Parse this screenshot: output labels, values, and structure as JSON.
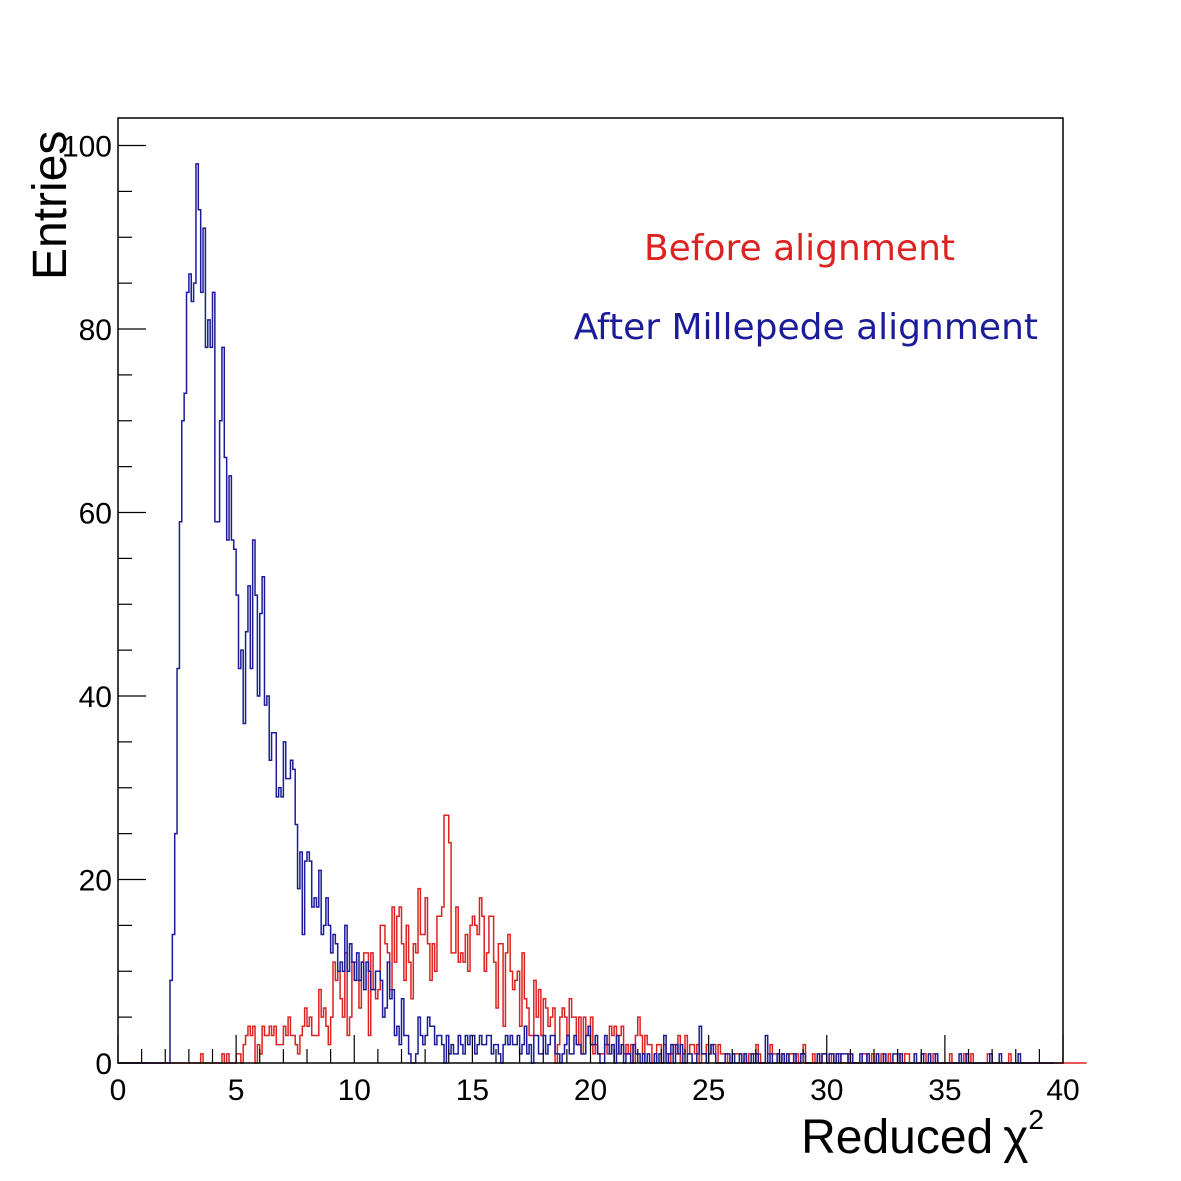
{
  "chart_data": {
    "type": "histogram",
    "xlabel": "Reduced",
    "xlabel_symbol": "χ",
    "xlabel_superscript": "2",
    "ylabel": "Entries",
    "xlim": [
      0,
      40
    ],
    "ylim": [
      0,
      103
    ],
    "bin_width": 0.1,
    "x_tick_labels": [
      "0",
      "5",
      "10",
      "15",
      "20",
      "25",
      "30",
      "35",
      "40"
    ],
    "y_tick_labels": [
      "0",
      "20",
      "40",
      "60",
      "80",
      "100"
    ],
    "grid": false,
    "legend_position": "top-right",
    "series": [
      {
        "name": "Before alignment",
        "color": "#dd2222",
        "bin_start": 0,
        "values": [
          0,
          0,
          0,
          0,
          0,
          0,
          0,
          0,
          0,
          0,
          0,
          0,
          0,
          0,
          0,
          0,
          0,
          0,
          0,
          0,
          0,
          0,
          0,
          0,
          0,
          0,
          0,
          0,
          0,
          0,
          0,
          0,
          0,
          0,
          0,
          1,
          0,
          0,
          0,
          0,
          0,
          0,
          0,
          0,
          1,
          0,
          1,
          0,
          0,
          0,
          1,
          1,
          0,
          2,
          3,
          4,
          3,
          4,
          0,
          2,
          1,
          4,
          3,
          3,
          4,
          3,
          4,
          2,
          2,
          2,
          4,
          3,
          5,
          3,
          3,
          2,
          1,
          3,
          4,
          6,
          4,
          5,
          3,
          3,
          3,
          8,
          5,
          6,
          4,
          2,
          5,
          11,
          9,
          10,
          7,
          5,
          12,
          3,
          5,
          11,
          11,
          9,
          6,
          11,
          12,
          12,
          3,
          12,
          8,
          7,
          8,
          15,
          15,
          13,
          12,
          8,
          17,
          11,
          16,
          17,
          13,
          9,
          15,
          11,
          7,
          13,
          12,
          19,
          14,
          14,
          18,
          13,
          9,
          13,
          10,
          16,
          16,
          17,
          27,
          27,
          24,
          12,
          12,
          17,
          11,
          12,
          11,
          14,
          10,
          15,
          16,
          15,
          14,
          18,
          16,
          10,
          12,
          16,
          16,
          11,
          6,
          13,
          13,
          4,
          12,
          14,
          10,
          8,
          9,
          10,
          4,
          12,
          7,
          6,
          3,
          3,
          9,
          5,
          8,
          3,
          7,
          6,
          4,
          5,
          6,
          0,
          2,
          5,
          6,
          5,
          3,
          7,
          5,
          5,
          2,
          5,
          1,
          5,
          3,
          3,
          5,
          1,
          2,
          1,
          1,
          1,
          2,
          1,
          4,
          3,
          4,
          1,
          3,
          4,
          1,
          2,
          1,
          2,
          0,
          3,
          5,
          3,
          1,
          3,
          2,
          2,
          0,
          0,
          2,
          2,
          0,
          2,
          1,
          0,
          1,
          2,
          1,
          3,
          0,
          1,
          3,
          1,
          2,
          2,
          1,
          2,
          0,
          1,
          1,
          2,
          1,
          2,
          2,
          0,
          2,
          1,
          1,
          1,
          0,
          0,
          1,
          1,
          1,
          1,
          0,
          1,
          0,
          1,
          1,
          1,
          2,
          1,
          0,
          0,
          0,
          1,
          2,
          1,
          1,
          1,
          0,
          1,
          0,
          0,
          1,
          1,
          0,
          1,
          0,
          1,
          2,
          0,
          0,
          0,
          1,
          0,
          1,
          0,
          1,
          1,
          0,
          0,
          1,
          0,
          1,
          1,
          0,
          0,
          0,
          1,
          0,
          0,
          0,
          0,
          0,
          1,
          1,
          0,
          0,
          1,
          0,
          1,
          0,
          1,
          0,
          0,
          1,
          0,
          0,
          0,
          1,
          0,
          0,
          1,
          1,
          0,
          0,
          0,
          0,
          0,
          1,
          1,
          0,
          0,
          0,
          1,
          0,
          0,
          0,
          0,
          0,
          0,
          1,
          0,
          0,
          0,
          0,
          0,
          1,
          0,
          0,
          1,
          0,
          0,
          0,
          0,
          0,
          0,
          1,
          0,
          0,
          0,
          0,
          0,
          0,
          0,
          0,
          1,
          0,
          0,
          0,
          0,
          0,
          0,
          0,
          0,
          0,
          0,
          0,
          0,
          0,
          0,
          0,
          0,
          0,
          0,
          0,
          0,
          0,
          0,
          0,
          0,
          0,
          0,
          0,
          0,
          0,
          0,
          0,
          0
        ]
      },
      {
        "name": "After Millepede alignment",
        "color": "#1c1c99",
        "bin_start": 0,
        "values": [
          0,
          0,
          0,
          0,
          0,
          0,
          0,
          0,
          0,
          0,
          0,
          0,
          0,
          0,
          0,
          0,
          0,
          0,
          0,
          0,
          0,
          0,
          9,
          14,
          25,
          43,
          59,
          70,
          73,
          84,
          86,
          83,
          85,
          98,
          93,
          84,
          91,
          78,
          81,
          78,
          84,
          59,
          59,
          70,
          78,
          66,
          57,
          64,
          57,
          56,
          51,
          43,
          45,
          37,
          47,
          52,
          43,
          57,
          51,
          40,
          49,
          53,
          39,
          40,
          33,
          36,
          36,
          29,
          30,
          29,
          35,
          31,
          31,
          33,
          32,
          26,
          19,
          23,
          14,
          22,
          23,
          22,
          17,
          18,
          17,
          21,
          14,
          15,
          18,
          15,
          12,
          14,
          13,
          10,
          11,
          10,
          15,
          10,
          13,
          11,
          9,
          12,
          9,
          11,
          8,
          11,
          10,
          8,
          8,
          10,
          10,
          9,
          5,
          6,
          11,
          7,
          8,
          3,
          4,
          2,
          7,
          3,
          3,
          1,
          0,
          0,
          1,
          5,
          3,
          2,
          3,
          5,
          4,
          4,
          2,
          3,
          3,
          2,
          0,
          3,
          1,
          2,
          1,
          1,
          3,
          2,
          1,
          3,
          2,
          3,
          3,
          1,
          2,
          3,
          2,
          2,
          3,
          3,
          1,
          2,
          2,
          1,
          0,
          2,
          3,
          2,
          3,
          2,
          2,
          3,
          1,
          2,
          4,
          1,
          2,
          0,
          3,
          3,
          1,
          1,
          3,
          1,
          2,
          3,
          3,
          1,
          1,
          0,
          1,
          2,
          3,
          1,
          1,
          3,
          2,
          2,
          1,
          1,
          3,
          4,
          2,
          2,
          3,
          1,
          0,
          0,
          3,
          2,
          1,
          2,
          0,
          3,
          1,
          2,
          0,
          1,
          1,
          0,
          2,
          1,
          1,
          0,
          1,
          0,
          1,
          0,
          0,
          1,
          0,
          1,
          0,
          3,
          0,
          1,
          2,
          0,
          2,
          1,
          2,
          0,
          0,
          1,
          1,
          0,
          0,
          1,
          4,
          1,
          1,
          0,
          1,
          2,
          1,
          0,
          0,
          0,
          0,
          1,
          1,
          0,
          1,
          0,
          0,
          1,
          0,
          1,
          0,
          0,
          1,
          0,
          1,
          0,
          0,
          0,
          3,
          0,
          1,
          0,
          0,
          1,
          0,
          1,
          0,
          1,
          0,
          0,
          1,
          0,
          0,
          1,
          1,
          0,
          0,
          0,
          0,
          0,
          1,
          0,
          1,
          1,
          0,
          1,
          1,
          0,
          1,
          0,
          1,
          1,
          1,
          0,
          1,
          0,
          0,
          0,
          1,
          0,
          0,
          1,
          0,
          0,
          0,
          1,
          0,
          0,
          1,
          0,
          0,
          0,
          1,
          1,
          0,
          1,
          0,
          0,
          0,
          0,
          0,
          1,
          0,
          0,
          1,
          0,
          0,
          1,
          0,
          0,
          1,
          0,
          0,
          0,
          0,
          0,
          0,
          0,
          0,
          0,
          1,
          0,
          0,
          1,
          0,
          0,
          0,
          0,
          0,
          0,
          0,
          0,
          0,
          1,
          0,
          0,
          0,
          1,
          0,
          0,
          0,
          0,
          0,
          0,
          0,
          1,
          0,
          0,
          0,
          0,
          0,
          0,
          0,
          0,
          0,
          0,
          0,
          0,
          0,
          0
        ]
      }
    ]
  }
}
